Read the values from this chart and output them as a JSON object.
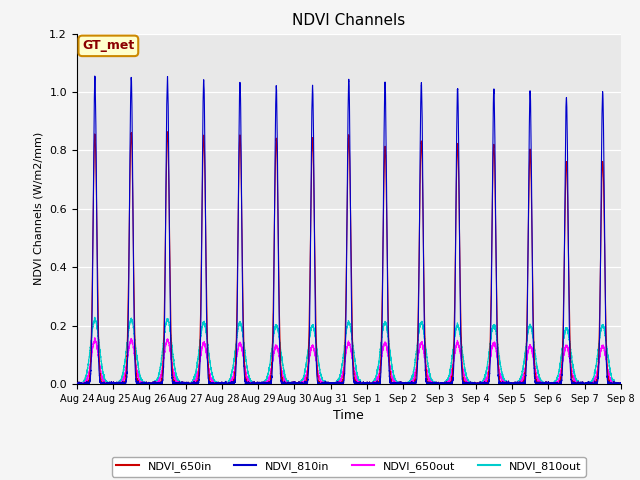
{
  "title": "NDVI Channels",
  "xlabel": "Time",
  "ylabel": "NDVI Channels (W/m2/mm)",
  "ylim": [
    0,
    1.2
  ],
  "plot_bg_color": "#e8e8e8",
  "fig_bg_color": "#f5f5f5",
  "annotation_text": "GT_met",
  "annotation_color": "#8b0000",
  "annotation_bg": "#ffffcc",
  "annotation_edge": "#cc8800",
  "legend_entries": [
    "NDVI_650in",
    "NDVI_810in",
    "NDVI_650out",
    "NDVI_810out"
  ],
  "line_colors": [
    "#cc0000",
    "#0000cc",
    "#ff00ff",
    "#00cccc"
  ],
  "num_days": 15,
  "peaks_650in": [
    0.85,
    0.86,
    0.86,
    0.85,
    0.85,
    0.84,
    0.84,
    0.85,
    0.81,
    0.83,
    0.82,
    0.82,
    0.8,
    0.76,
    0.76
  ],
  "peaks_810in": [
    1.05,
    1.05,
    1.05,
    1.04,
    1.03,
    1.02,
    1.02,
    1.04,
    1.03,
    1.03,
    1.01,
    1.01,
    1.0,
    0.98,
    1.0
  ],
  "peaks_650out": [
    0.15,
    0.15,
    0.15,
    0.14,
    0.14,
    0.13,
    0.13,
    0.14,
    0.14,
    0.14,
    0.14,
    0.14,
    0.13,
    0.13,
    0.13
  ],
  "peaks_810out": [
    0.22,
    0.22,
    0.22,
    0.21,
    0.21,
    0.2,
    0.2,
    0.21,
    0.21,
    0.21,
    0.2,
    0.2,
    0.2,
    0.19,
    0.2
  ],
  "samples_per_day": 500,
  "tick_dates": [
    "Aug 24",
    "Aug 25",
    "Aug 26",
    "Aug 27",
    "Aug 28",
    "Aug 29",
    "Aug 30",
    "Aug 31",
    "Sep 1",
    "Sep 2",
    "Sep 3",
    "Sep 4",
    "Sep 5",
    "Sep 6",
    "Sep 7",
    "Sep 8"
  ]
}
